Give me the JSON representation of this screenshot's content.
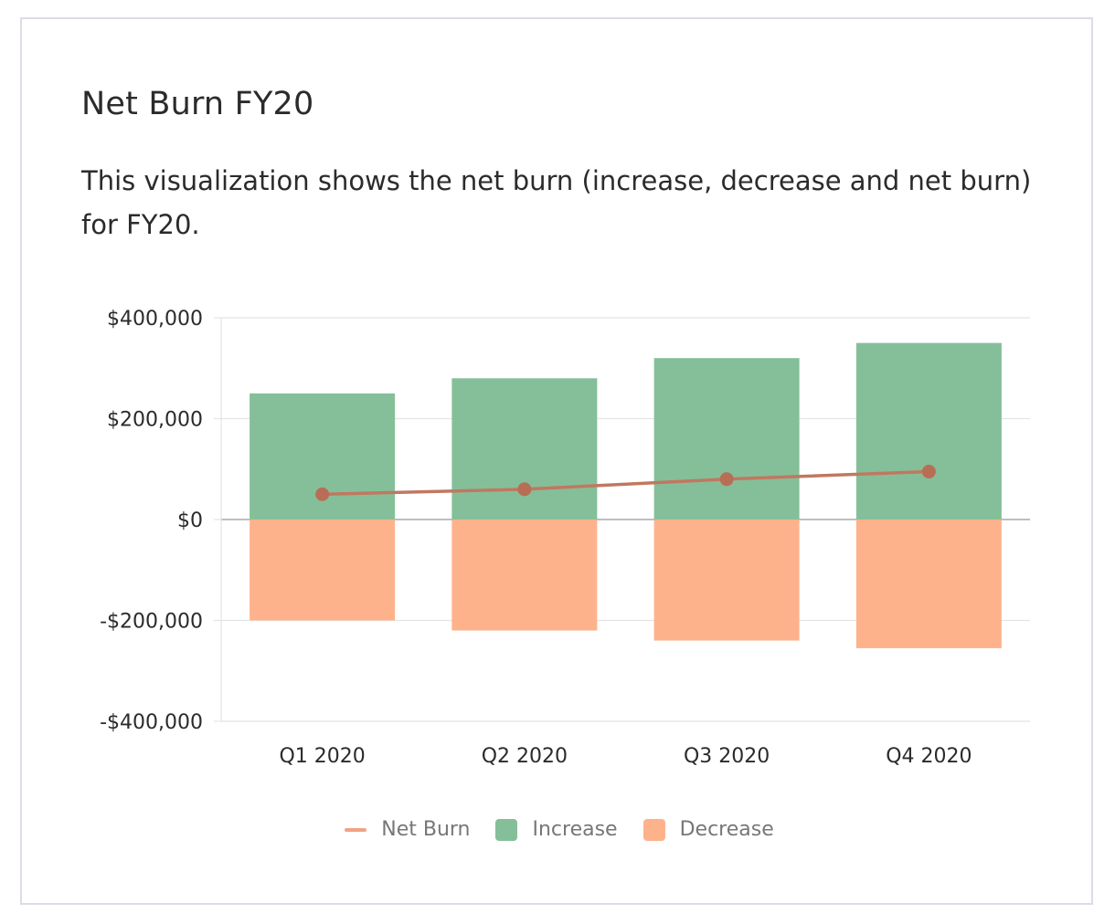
{
  "card": {
    "title": "Net Burn FY20",
    "description": "This visualization shows the net burn (increase, decrease and net burn) for FY20."
  },
  "colors": {
    "increase": "#85bf99",
    "decrease": "#feb28c",
    "net_burn_line": "#c07860",
    "net_burn_point": "#b86e55",
    "net_burn_legend": "#f1a383",
    "gridline": "#e4e4e4",
    "zero_line": "#a8a8a8"
  },
  "chart_data": {
    "type": "bar",
    "stacked": true,
    "categories": [
      "Q1 2020",
      "Q2 2020",
      "Q3 2020",
      "Q4 2020"
    ],
    "series": [
      {
        "name": "Net Burn",
        "type": "line",
        "values": [
          50000,
          60000,
          80000,
          95000
        ]
      },
      {
        "name": "Increase",
        "type": "bar",
        "values": [
          250000,
          280000,
          320000,
          350000
        ]
      },
      {
        "name": "Decrease",
        "type": "bar",
        "values": [
          -200000,
          -220000,
          -240000,
          -255000
        ]
      }
    ],
    "yticks": [
      400000,
      200000,
      0,
      -200000,
      -400000
    ],
    "ytick_labels": [
      "$400,000",
      "$200,000",
      "$0",
      "-$200,000",
      "-$400,000"
    ],
    "ylim": [
      -400000,
      400000
    ],
    "grid": true,
    "legend_position": "bottom"
  }
}
